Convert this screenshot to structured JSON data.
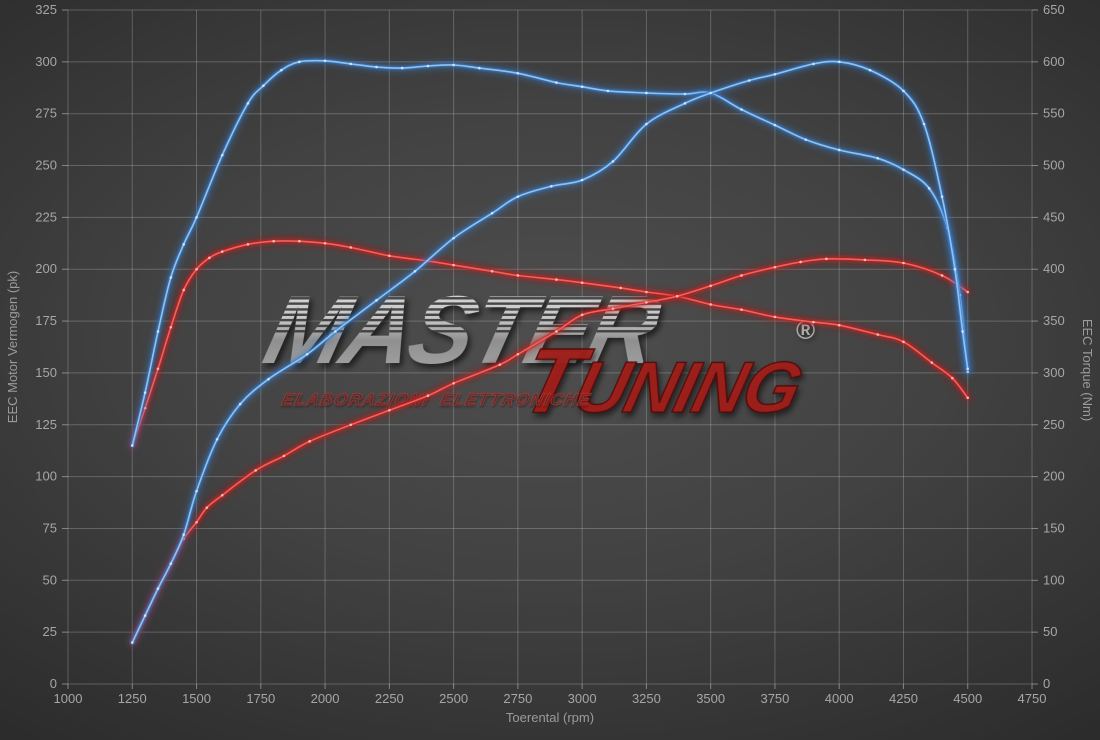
{
  "watermark": {
    "brand_top": "MASTER",
    "brand_bottom": "TUNING",
    "tagline": "ELABORAZIONI ELETTRONICHE",
    "registered": "®"
  },
  "chart_data": {
    "type": "line",
    "title": "",
    "xlabel": "Toerental (rpm)",
    "ylabel_left": "EEC Motor Vermogen (pk)",
    "ylabel_right": "EEC Torque (Nm)",
    "x_range": [
      1000,
      4750
    ],
    "x_tick_step": 250,
    "y_left_range": [
      0,
      325
    ],
    "y_left_tick_step": 25,
    "y_right_range": [
      0,
      650
    ],
    "y_right_tick_step": 50,
    "grid": true,
    "legend_position": "none",
    "grid_color": "#c8c8c8",
    "tick_label_color": "#a6a6a6",
    "series": [
      {
        "name": "torque-original",
        "axis": "right",
        "unit": "Nm",
        "color_core": "#f2625c",
        "color_glow": "#c11f1f",
        "color_dot": "#ffc9c4",
        "points": [
          [
            1250,
            230
          ],
          [
            1300,
            266
          ],
          [
            1350,
            304
          ],
          [
            1400,
            344
          ],
          [
            1450,
            380
          ],
          [
            1500,
            400
          ],
          [
            1550,
            411
          ],
          [
            1600,
            417
          ],
          [
            1700,
            424
          ],
          [
            1800,
            427
          ],
          [
            1900,
            427
          ],
          [
            2000,
            425
          ],
          [
            2100,
            421
          ],
          [
            2250,
            413
          ],
          [
            2400,
            408
          ],
          [
            2500,
            404
          ],
          [
            2650,
            398
          ],
          [
            2750,
            394
          ],
          [
            2900,
            390
          ],
          [
            3000,
            387
          ],
          [
            3150,
            382
          ],
          [
            3250,
            378
          ],
          [
            3370,
            374
          ],
          [
            3500,
            366
          ],
          [
            3620,
            361
          ],
          [
            3750,
            354
          ],
          [
            3900,
            349
          ],
          [
            4000,
            346
          ],
          [
            4150,
            337
          ],
          [
            4250,
            330
          ],
          [
            4360,
            310
          ],
          [
            4440,
            295
          ],
          [
            4500,
            276
          ]
        ]
      },
      {
        "name": "power-original",
        "axis": "left",
        "unit": "pk",
        "color_core": "#f2625c",
        "color_glow": "#c11f1f",
        "color_dot": "#ffc9c4",
        "points": [
          [
            1250,
            20
          ],
          [
            1300,
            33
          ],
          [
            1350,
            46
          ],
          [
            1400,
            58
          ],
          [
            1450,
            70
          ],
          [
            1500,
            78
          ],
          [
            1540,
            85
          ],
          [
            1600,
            91
          ],
          [
            1730,
            103
          ],
          [
            1840,
            110
          ],
          [
            1940,
            117
          ],
          [
            2100,
            125
          ],
          [
            2250,
            132
          ],
          [
            2400,
            139
          ],
          [
            2500,
            145
          ],
          [
            2680,
            154
          ],
          [
            2750,
            159
          ],
          [
            2900,
            170
          ],
          [
            3000,
            178
          ],
          [
            3120,
            181
          ],
          [
            3250,
            184
          ],
          [
            3370,
            187
          ],
          [
            3500,
            192
          ],
          [
            3620,
            197
          ],
          [
            3750,
            201
          ],
          [
            3850,
            203.5
          ],
          [
            3950,
            205
          ],
          [
            4100,
            204.5
          ],
          [
            4250,
            203
          ],
          [
            4400,
            197
          ],
          [
            4500,
            189
          ]
        ]
      },
      {
        "name": "torque-tuned",
        "axis": "right",
        "unit": "Nm",
        "color_core": "#8fc3ee",
        "color_glow": "#3579c8",
        "color_dot": "#d9ecfa",
        "points": [
          [
            1250,
            230
          ],
          [
            1300,
            281
          ],
          [
            1350,
            340
          ],
          [
            1400,
            392
          ],
          [
            1450,
            424
          ],
          [
            1500,
            450
          ],
          [
            1600,
            510
          ],
          [
            1700,
            560
          ],
          [
            1760,
            577
          ],
          [
            1830,
            592
          ],
          [
            1900,
            600
          ],
          [
            2000,
            601
          ],
          [
            2100,
            598
          ],
          [
            2200,
            595
          ],
          [
            2300,
            594
          ],
          [
            2400,
            596
          ],
          [
            2500,
            597
          ],
          [
            2600,
            594
          ],
          [
            2750,
            589
          ],
          [
            2900,
            580
          ],
          [
            3000,
            576
          ],
          [
            3100,
            572
          ],
          [
            3250,
            570
          ],
          [
            3400,
            569
          ],
          [
            3500,
            570
          ],
          [
            3620,
            554
          ],
          [
            3750,
            539
          ],
          [
            3870,
            525
          ],
          [
            4000,
            515
          ],
          [
            4150,
            507
          ],
          [
            4250,
            496
          ],
          [
            4350,
            478
          ],
          [
            4420,
            440
          ],
          [
            4470,
            375
          ],
          [
            4500,
            301
          ]
        ]
      },
      {
        "name": "power-tuned",
        "axis": "left",
        "unit": "pk",
        "color_core": "#8fc3ee",
        "color_glow": "#3579c8",
        "color_dot": "#d9ecfa",
        "points": [
          [
            1250,
            20
          ],
          [
            1300,
            33
          ],
          [
            1350,
            46
          ],
          [
            1400,
            58
          ],
          [
            1450,
            72
          ],
          [
            1500,
            93
          ],
          [
            1580,
            118
          ],
          [
            1670,
            135
          ],
          [
            1780,
            147
          ],
          [
            1930,
            159
          ],
          [
            2040,
            170
          ],
          [
            2200,
            185
          ],
          [
            2350,
            199
          ],
          [
            2500,
            215
          ],
          [
            2650,
            227
          ],
          [
            2750,
            235
          ],
          [
            2880,
            240
          ],
          [
            3000,
            243
          ],
          [
            3120,
            252
          ],
          [
            3250,
            270
          ],
          [
            3400,
            280
          ],
          [
            3500,
            285
          ],
          [
            3650,
            291
          ],
          [
            3750,
            294
          ],
          [
            3900,
            299
          ],
          [
            4000,
            300
          ],
          [
            4120,
            296
          ],
          [
            4250,
            286
          ],
          [
            4330,
            270
          ],
          [
            4400,
            235
          ],
          [
            4450,
            200
          ],
          [
            4480,
            170
          ],
          [
            4500,
            152
          ]
        ]
      }
    ]
  }
}
